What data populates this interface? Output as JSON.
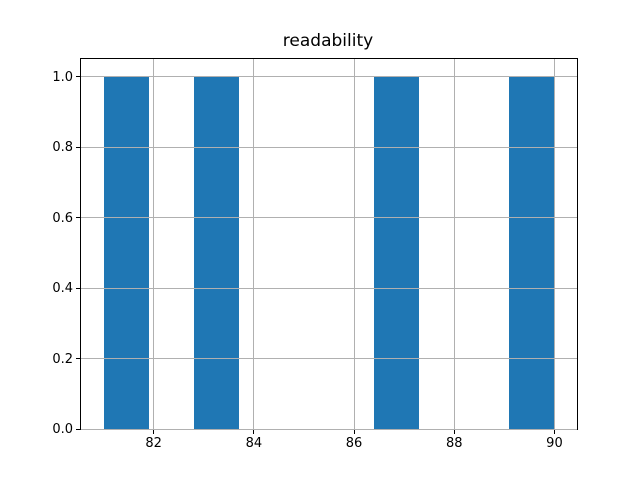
{
  "chart_data": {
    "type": "bar",
    "title": "readability",
    "bars": [
      {
        "x0": 81.0,
        "x1": 81.9,
        "height": 1.0
      },
      {
        "x0": 82.8,
        "x1": 83.7,
        "height": 1.0
      },
      {
        "x0": 86.4,
        "x1": 87.3,
        "height": 1.0
      },
      {
        "x0": 89.1,
        "x1": 90.0,
        "height": 1.0
      }
    ],
    "bin_edges": [
      81.0,
      81.9,
      82.8,
      83.7,
      84.6,
      85.5,
      86.4,
      87.3,
      88.2,
      89.1,
      90.0
    ],
    "bin_counts": [
      1,
      0,
      1,
      0,
      0,
      0,
      1,
      0,
      0,
      1
    ],
    "xticks": [
      {
        "value": 82,
        "label": "82"
      },
      {
        "value": 84,
        "label": "84"
      },
      {
        "value": 86,
        "label": "86"
      },
      {
        "value": 88,
        "label": "88"
      },
      {
        "value": 90,
        "label": "90"
      }
    ],
    "yticks": [
      {
        "value": 0.0,
        "label": "0.0"
      },
      {
        "value": 0.2,
        "label": "0.2"
      },
      {
        "value": 0.4,
        "label": "0.4"
      },
      {
        "value": 0.6,
        "label": "0.6"
      },
      {
        "value": 0.8,
        "label": "0.8"
      },
      {
        "value": 1.0,
        "label": "1.0"
      }
    ],
    "xlim": [
      80.55,
      90.45
    ],
    "ylim": [
      0,
      1.05
    ],
    "xlabel": "",
    "ylabel": "",
    "grid": true,
    "grid_above_bars": true,
    "legend": null,
    "bar_color": "#1f77b4",
    "grid_color": "#b0b0b0",
    "spine_color": "#000000",
    "background_color": "#ffffff"
  }
}
